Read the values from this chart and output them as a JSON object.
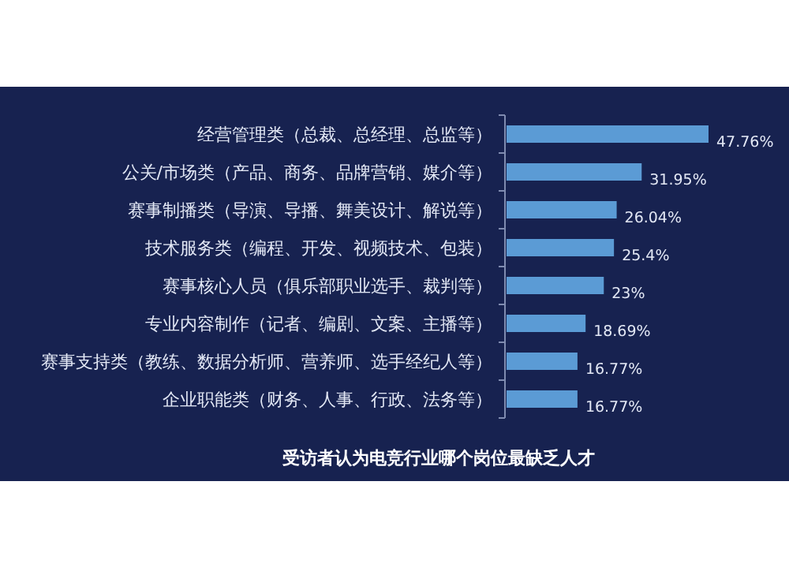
{
  "chart_data": {
    "type": "bar",
    "orientation": "horizontal",
    "title": "受访者认为电竞行业哪个岗位最缺乏人才",
    "categories": [
      "经营管理类（总裁、总经理、总监等）",
      "公关/市场类（产品、商务、品牌营销、媒介等）",
      "赛事制播类（导演、导播、舞美设计、解说等）",
      "技术服务类（编程、开发、视频技术、包装）",
      "赛事核心人员（俱乐部职业选手、裁判等）",
      "专业内容制作（记者、编剧、文案、主播等）",
      "赛事支持类（教练、数据分析师、营养师、选手经纪人等）",
      "企业职能类（财务、人事、行政、法务等）"
    ],
    "values": [
      47.76,
      31.95,
      26.04,
      25.4,
      23,
      18.69,
      16.77,
      16.77
    ],
    "value_labels": [
      "47.76%",
      "31.95%",
      "26.04%",
      "25.4%",
      "23%",
      "18.69%",
      "16.77%",
      "16.77%"
    ],
    "color": "#5b9bd5"
  }
}
